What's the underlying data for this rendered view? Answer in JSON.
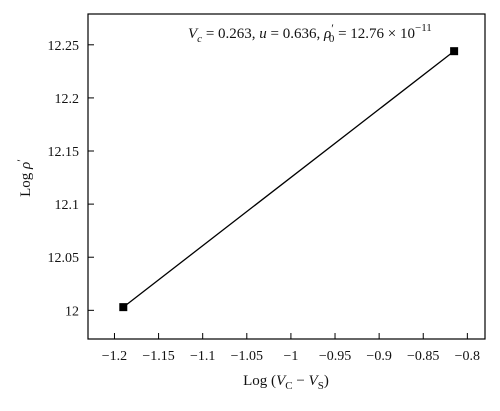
{
  "chart_data": {
    "type": "line",
    "title": "",
    "xlabel": {
      "prefix": "Log (",
      "v1": "V",
      "v1_sub": "C",
      "sep": " − ",
      "v2": "V",
      "v2_sub": "S",
      "suffix": ")"
    },
    "ylabel": {
      "prefix": "Log ",
      "symbol": "ρ",
      "prime": "′"
    },
    "xlim": [
      -1.23,
      -0.78
    ],
    "ylim": [
      11.973,
      12.279
    ],
    "x_ticks": [
      -1.2,
      -1.15,
      -1.1,
      -1.05,
      -1.0,
      -0.95,
      -0.9,
      -0.85,
      -0.8
    ],
    "x_tick_labels": [
      "−1.2",
      "−1.15",
      "−1.1",
      "−1.05",
      "−1",
      "−0.95",
      "−0.9",
      "−0.85",
      "−0.8"
    ],
    "y_ticks": [
      12.0,
      12.05,
      12.1,
      12.15,
      12.2,
      12.25
    ],
    "y_tick_labels": [
      "12",
      "12.05",
      "12.1",
      "12.15",
      "12.2",
      "12.25"
    ],
    "grid": false,
    "line_color": "#000000",
    "marker": "square",
    "series": [
      {
        "x": [
          -1.19,
          -0.815
        ],
        "y": [
          12.003,
          12.244
        ]
      }
    ],
    "annotation": {
      "vc_sym": "V",
      "vc_sub": "c",
      "vc_val": " = 0.263, ",
      "u_sym": "u",
      "u_val": " = 0.636, ",
      "rho_sym": "ρ",
      "rho_prime": "′",
      "rho_sub": "0",
      "rho_val": " = 12.76 × 10",
      "rho_exp": "−11"
    }
  }
}
